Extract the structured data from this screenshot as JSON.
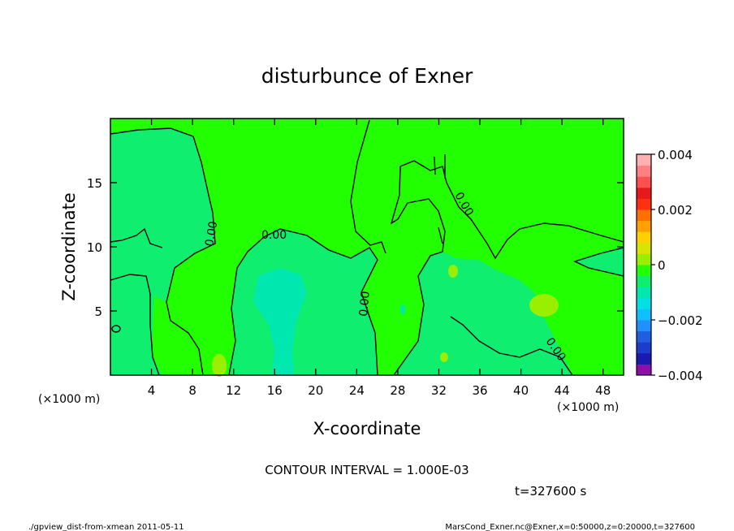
{
  "chart_data": {
    "type": "heatmap",
    "title": "disturbunce of Exner",
    "xlabel": "X-coordinate",
    "ylabel": "Z-coordinate",
    "x_unit": "(×1000 m)",
    "y_unit": "(×1000 m)",
    "xlim": [
      0,
      50
    ],
    "ylim": [
      0,
      20
    ],
    "x_ticks": [
      "4",
      "8",
      "12",
      "16",
      "20",
      "24",
      "28",
      "32",
      "36",
      "40",
      "44",
      "48"
    ],
    "y_ticks": [
      "5",
      "10",
      "15"
    ],
    "colorbar": {
      "range": [
        -0.004,
        0.004
      ],
      "tick_labels": [
        "0.004",
        "0.002",
        "0",
        "−0.002",
        "−0.004"
      ],
      "colors": [
        "#8a10a8",
        "#1a1ab0",
        "#1e3ccc",
        "#2060e0",
        "#1e90ff",
        "#10bfff",
        "#00e0e6",
        "#00e8b0",
        "#10ee70",
        "#22ff00",
        "#9aee00",
        "#d8e400",
        "#ffd000",
        "#ffa000",
        "#ff7000",
        "#ff3010",
        "#e61a1a",
        "#ff5050",
        "#ff8080",
        "#ffb0b0"
      ]
    },
    "contour_interval": "CONTOUR INTERVAL = 1.000E-03",
    "contour_labels": [
      "0.00",
      "0.00",
      "0.00",
      "0.00",
      "0.00"
    ],
    "time_label": "t=327600 s",
    "regions": [
      {
        "level": "0",
        "color": "#22ff00"
      },
      {
        "level": "-0.0005",
        "color": "#10ee70"
      },
      {
        "level": "-0.001",
        "color": "#00e8b0"
      },
      {
        "level": "0.0005",
        "color": "#9aee00"
      }
    ]
  },
  "footer": {
    "left": "./gpview_dist-from-xmean  2011-05-11",
    "right": "MarsCond_Exner.nc@Exner,x=0:50000,z=0:20000,t=327600"
  }
}
